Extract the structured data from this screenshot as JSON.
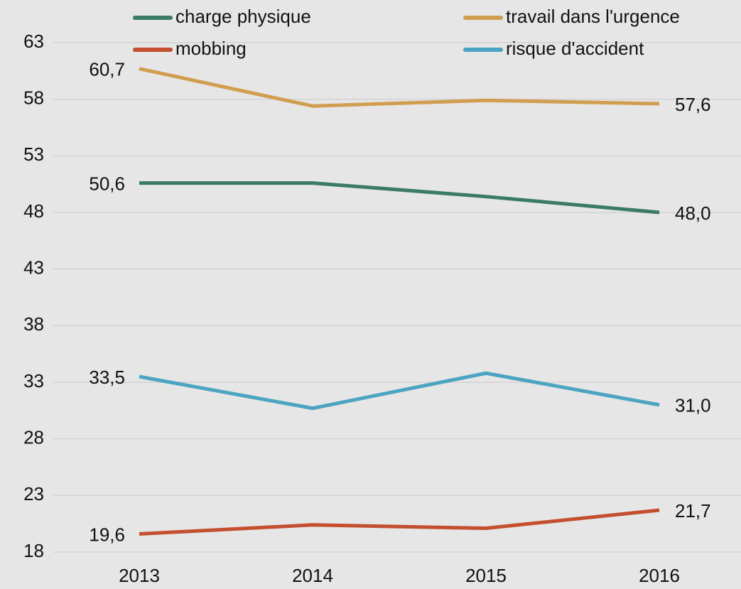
{
  "chart_data": {
    "type": "line",
    "categories": [
      "2013",
      "2014",
      "2015",
      "2016"
    ],
    "series": [
      {
        "name": "charge physique",
        "color": "#3b7a68",
        "values": [
          50.6,
          50.6,
          49.4,
          48.0
        ],
        "value_labels": [
          "50,6",
          null,
          null,
          "48,0"
        ]
      },
      {
        "name": "travail dans l'urgence",
        "color": "#d19e50",
        "values": [
          60.7,
          57.4,
          57.9,
          57.6
        ],
        "value_labels": [
          "60,7",
          null,
          null,
          "57,6"
        ]
      },
      {
        "name": "mobbing",
        "color": "#c44f2f",
        "values": [
          19.6,
          20.4,
          20.1,
          21.7
        ],
        "value_labels": [
          "19,6",
          null,
          null,
          "21,7"
        ]
      },
      {
        "name": "risque d'accident",
        "color": "#4ba4c1",
        "values": [
          33.5,
          30.7,
          33.8,
          31.0
        ],
        "value_labels": [
          "33,5",
          null,
          null,
          "31,0"
        ]
      }
    ],
    "ylim": [
      18,
      63
    ],
    "yticks": [
      18,
      23,
      28,
      33,
      38,
      43,
      48,
      53,
      58,
      63
    ],
    "grid": true
  }
}
